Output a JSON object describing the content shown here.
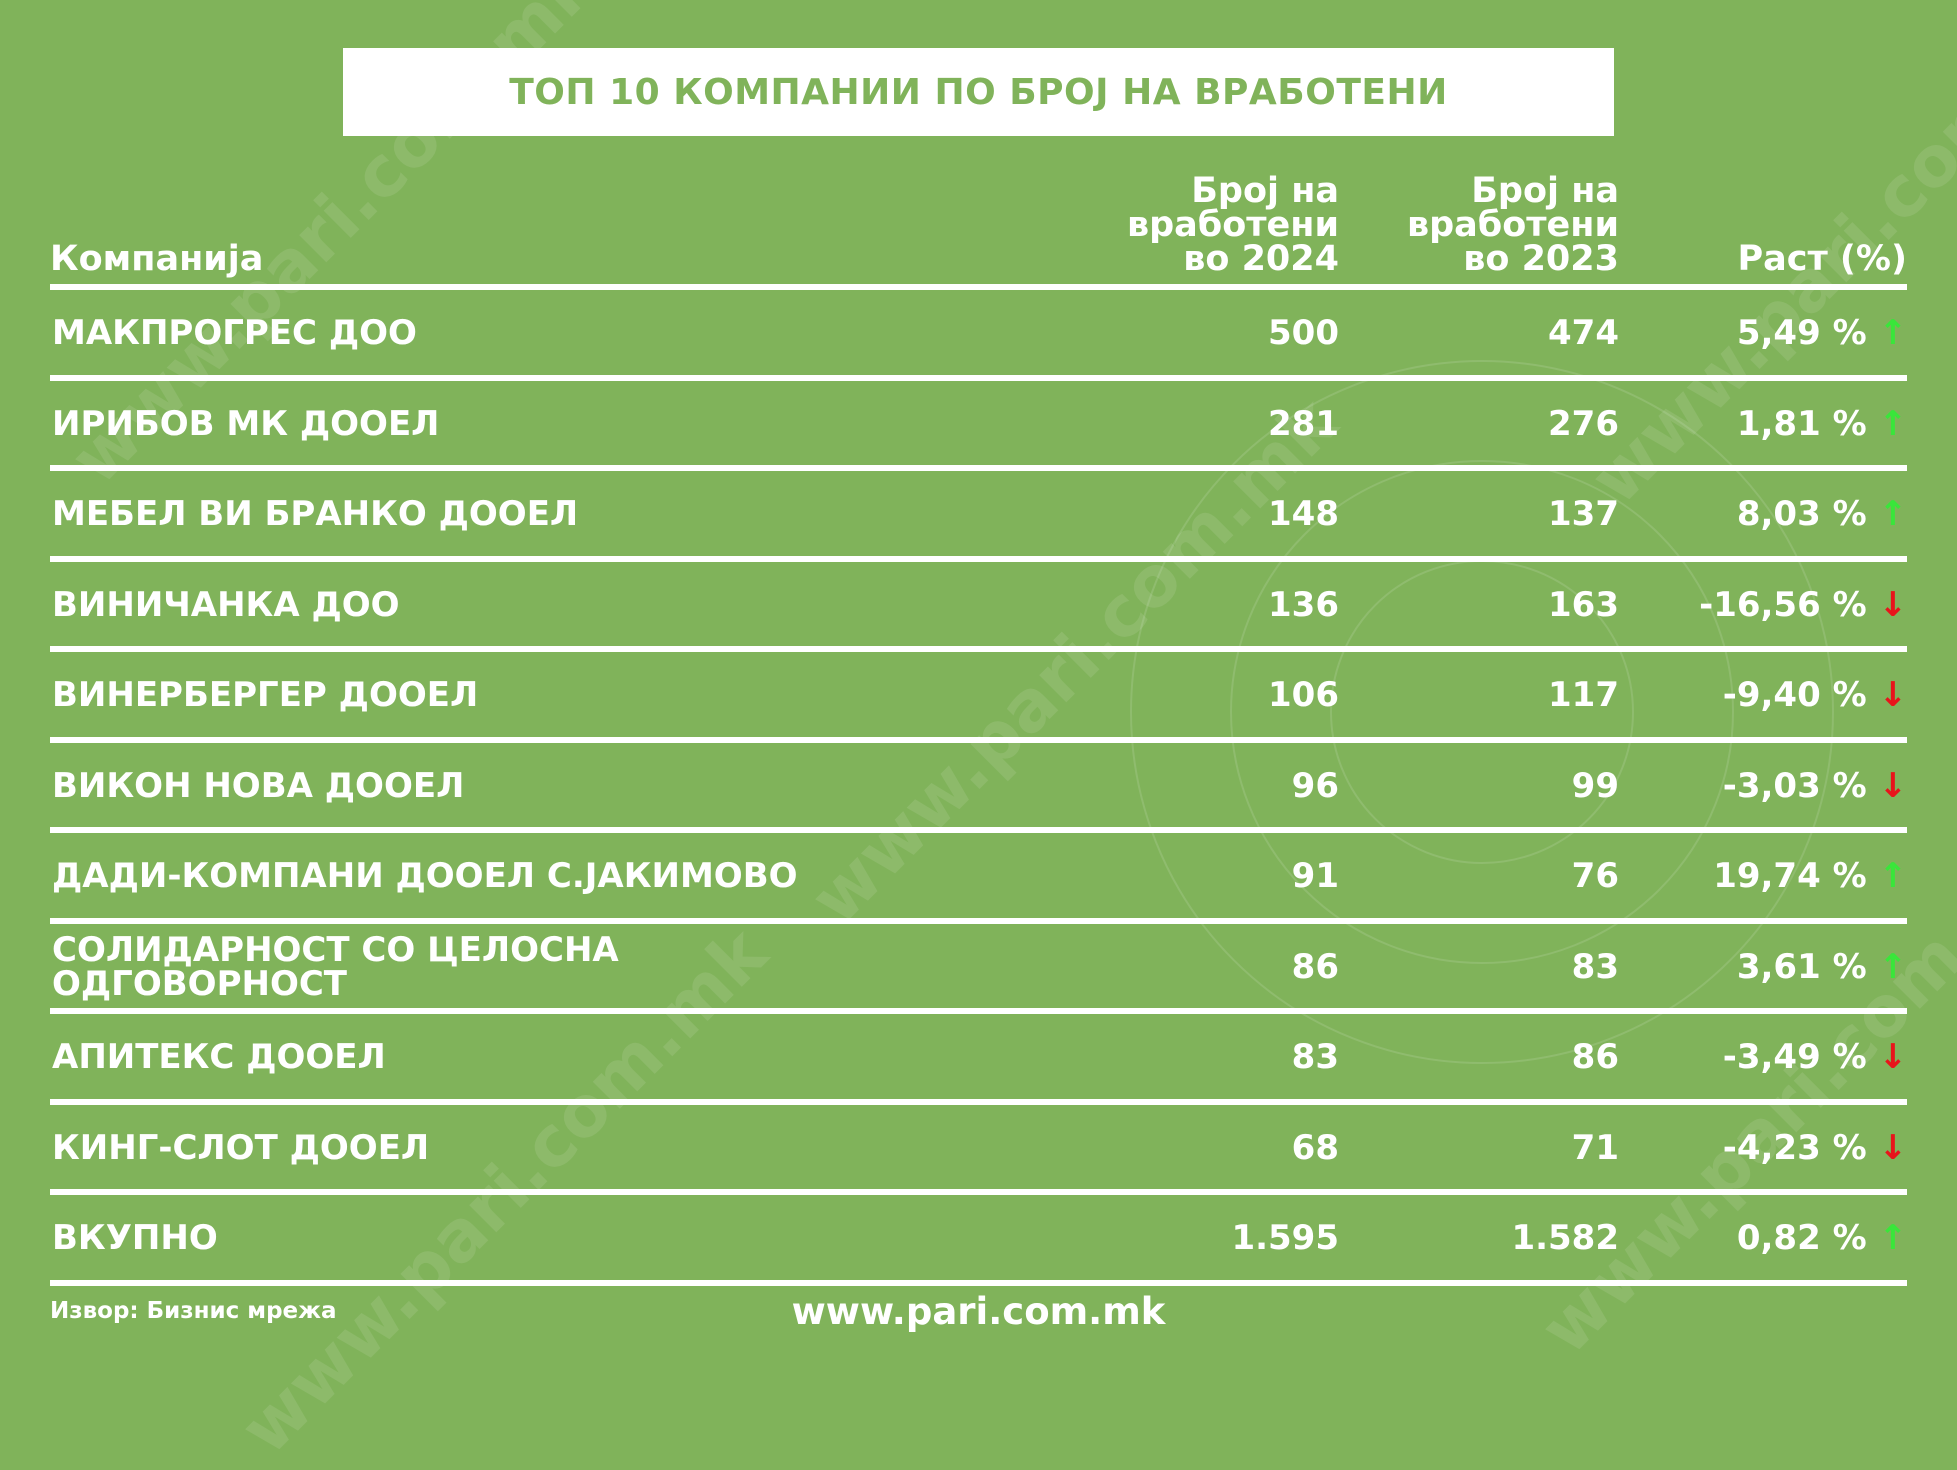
{
  "title": "ТОП 10 КОМПАНИИ ПО БРОЈ НА ВРАБОТЕНИ",
  "header": {
    "company": "Компанија",
    "employees_2024": [
      "Број на",
      "вработени",
      "во 2024"
    ],
    "employees_2023": [
      "Број на",
      "вработени",
      "во 2023"
    ],
    "growth": "Раст (%)"
  },
  "rows": [
    {
      "name": [
        "МАКПРОГРЕС ДОО"
      ],
      "y2024": "500",
      "y2023": "474",
      "growth": "5,49 %",
      "dir": "up"
    },
    {
      "name": [
        "ИРИБОВ МК ДООЕЛ"
      ],
      "y2024": "281",
      "y2023": "276",
      "growth": "1,81 %",
      "dir": "up"
    },
    {
      "name": [
        "МЕБЕЛ ВИ БРАНКО ДООЕЛ"
      ],
      "y2024": "148",
      "y2023": "137",
      "growth": "8,03 %",
      "dir": "up"
    },
    {
      "name": [
        "ВИНИЧАНКА ДОО"
      ],
      "y2024": "136",
      "y2023": "163",
      "growth": "-16,56 %",
      "dir": "down"
    },
    {
      "name": [
        "ВИНЕРБЕРГЕР ДООЕЛ"
      ],
      "y2024": "106",
      "y2023": "117",
      "growth": "-9,40 %",
      "dir": "down"
    },
    {
      "name": [
        "ВИКОН НОВА ДООЕЛ"
      ],
      "y2024": "96",
      "y2023": "99",
      "growth": "-3,03 %",
      "dir": "down"
    },
    {
      "name": [
        "ДАДИ-КОМПАНИ ДООЕЛ С.ЈАКИМОВО"
      ],
      "y2024": "91",
      "y2023": "76",
      "growth": "19,74 %",
      "dir": "up"
    },
    {
      "name": [
        "СОЛИДАРНОСТ СО ЦЕЛОСНА",
        "ОДГОВОРНОСТ"
      ],
      "y2024": "86",
      "y2023": "83",
      "growth": "3,61 %",
      "dir": "up"
    },
    {
      "name": [
        "АПИТЕКС ДООЕЛ"
      ],
      "y2024": "83",
      "y2023": "86",
      "growth": "-3,49 %",
      "dir": "down"
    },
    {
      "name": [
        "КИНГ-СЛОТ ДООЕЛ"
      ],
      "y2024": "68",
      "y2023": "71",
      "growth": "-4,23 %",
      "dir": "down"
    },
    {
      "name": [
        "ВКУПНО"
      ],
      "y2024": "1.595",
      "y2023": "1.582",
      "growth": "0,82 %",
      "dir": "up"
    }
  ],
  "arrows": {
    "up": "↑",
    "down": "↓"
  },
  "colors": {
    "background": "#80b35a",
    "arrow_up": "#39e63a",
    "arrow_down": "#e8141b"
  },
  "source": "Извор: Бизнис мрежа",
  "footer_url": "www.pari.com.mk",
  "watermark_text": "www.pari.com.mk"
}
